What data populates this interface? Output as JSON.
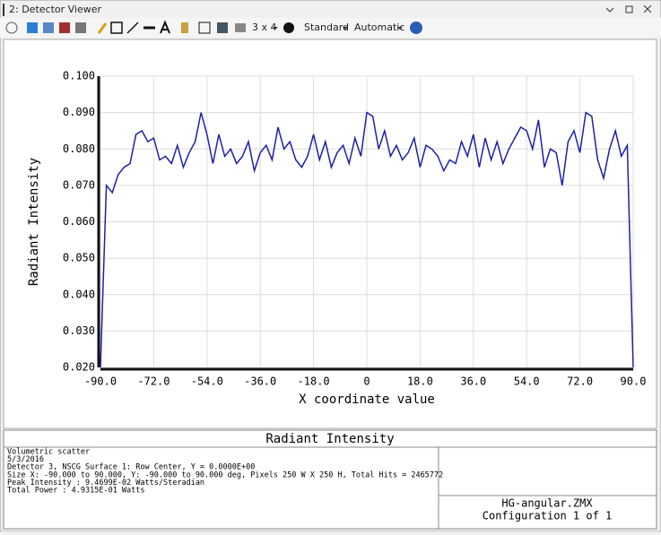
{
  "window": {
    "title": "2: Detector Viewer"
  },
  "toolbar": {
    "layout": "3 x 4",
    "mode": "Standard",
    "scale": "Automatic"
  },
  "chart_data": {
    "type": "line",
    "xlabel": "X coordinate value",
    "ylabel": "Radiant Intensity",
    "color": "#1f1fa8",
    "grid": true,
    "xlim": [
      -90,
      90
    ],
    "ylim": [
      0.02,
      0.1
    ],
    "xticks": [
      {
        "value": -90,
        "label": "-90.0"
      },
      {
        "value": -72,
        "label": "-72.0"
      },
      {
        "value": -54,
        "label": "-54.0"
      },
      {
        "value": -36,
        "label": "-36.0"
      },
      {
        "value": -18,
        "label": "-18.0"
      },
      0,
      {
        "value": 18,
        "label": "18.0"
      },
      {
        "value": 36,
        "label": "36.0"
      },
      {
        "value": 54,
        "label": "54.0"
      },
      {
        "value": 72,
        "label": "72.0"
      },
      {
        "value": 90,
        "label": "90.0"
      }
    ],
    "yticks": [
      {
        "value": 0.02,
        "label": "0.020"
      },
      {
        "value": 0.03,
        "label": "0.030"
      },
      {
        "value": 0.04,
        "label": "0.040"
      },
      {
        "value": 0.05,
        "label": "0.050"
      },
      {
        "value": 0.06,
        "label": "0.060"
      },
      {
        "value": 0.07,
        "label": "0.070"
      },
      {
        "value": 0.08,
        "label": "0.080"
      },
      {
        "value": 0.09,
        "label": "0.090"
      },
      {
        "value": 0.1,
        "label": "0.100"
      }
    ],
    "x": [
      -90,
      -88,
      -86,
      -84,
      -82,
      -80,
      -78,
      -76,
      -74,
      -72,
      -70,
      -68,
      -66,
      -64,
      -62,
      -60,
      -58,
      -56,
      -54,
      -52,
      -50,
      -48,
      -46,
      -44,
      -42,
      -40,
      -38,
      -36,
      -34,
      -32,
      -30,
      -28,
      -26,
      -24,
      -22,
      -20,
      -18,
      -16,
      -14,
      -12,
      -10,
      -8,
      -6,
      -4,
      -2,
      0,
      2,
      4,
      6,
      8,
      10,
      12,
      14,
      16,
      18,
      20,
      22,
      24,
      26,
      28,
      30,
      32,
      34,
      36,
      38,
      40,
      42,
      44,
      46,
      48,
      50,
      52,
      54,
      56,
      58,
      60,
      62,
      64,
      66,
      68,
      70,
      72,
      74,
      76,
      78,
      80,
      82,
      84,
      86,
      88,
      90
    ],
    "values": [
      0.02,
      0.07,
      0.068,
      0.073,
      0.075,
      0.076,
      0.084,
      0.085,
      0.082,
      0.083,
      0.077,
      0.078,
      0.076,
      0.081,
      0.075,
      0.079,
      0.082,
      0.09,
      0.084,
      0.076,
      0.084,
      0.078,
      0.08,
      0.076,
      0.078,
      0.082,
      0.074,
      0.079,
      0.081,
      0.077,
      0.086,
      0.08,
      0.082,
      0.077,
      0.075,
      0.078,
      0.084,
      0.077,
      0.082,
      0.075,
      0.079,
      0.081,
      0.076,
      0.083,
      0.078,
      0.09,
      0.089,
      0.08,
      0.085,
      0.078,
      0.081,
      0.077,
      0.079,
      0.083,
      0.075,
      0.081,
      0.08,
      0.078,
      0.074,
      0.077,
      0.076,
      0.082,
      0.078,
      0.084,
      0.075,
      0.083,
      0.077,
      0.082,
      0.076,
      0.08,
      0.083,
      0.086,
      0.085,
      0.08,
      0.088,
      0.075,
      0.08,
      0.079,
      0.07,
      0.082,
      0.085,
      0.079,
      0.09,
      0.089,
      0.077,
      0.072,
      0.08,
      0.085,
      0.078,
      0.081,
      0.02
    ]
  },
  "footer": {
    "title": "Radiant Intensity",
    "info": [
      "Volumetric scatter",
      "5/3/2016",
      "Detector 3, NSCG Surface 1: Row Center, Y = 0.0000E+00",
      "Size X: -90.000 to 90.000, Y: -90.000 to 90.000 deg, Pixels 250 W X 250 H, Total Hits = 2465772",
      "Peak Intensity   : 9.4699E-02 Watts/Steradian",
      "Total Power      : 4.9315E-01 Watts"
    ],
    "file": "HG-angular.ZMX",
    "config": "Configuration 1 of 1"
  }
}
